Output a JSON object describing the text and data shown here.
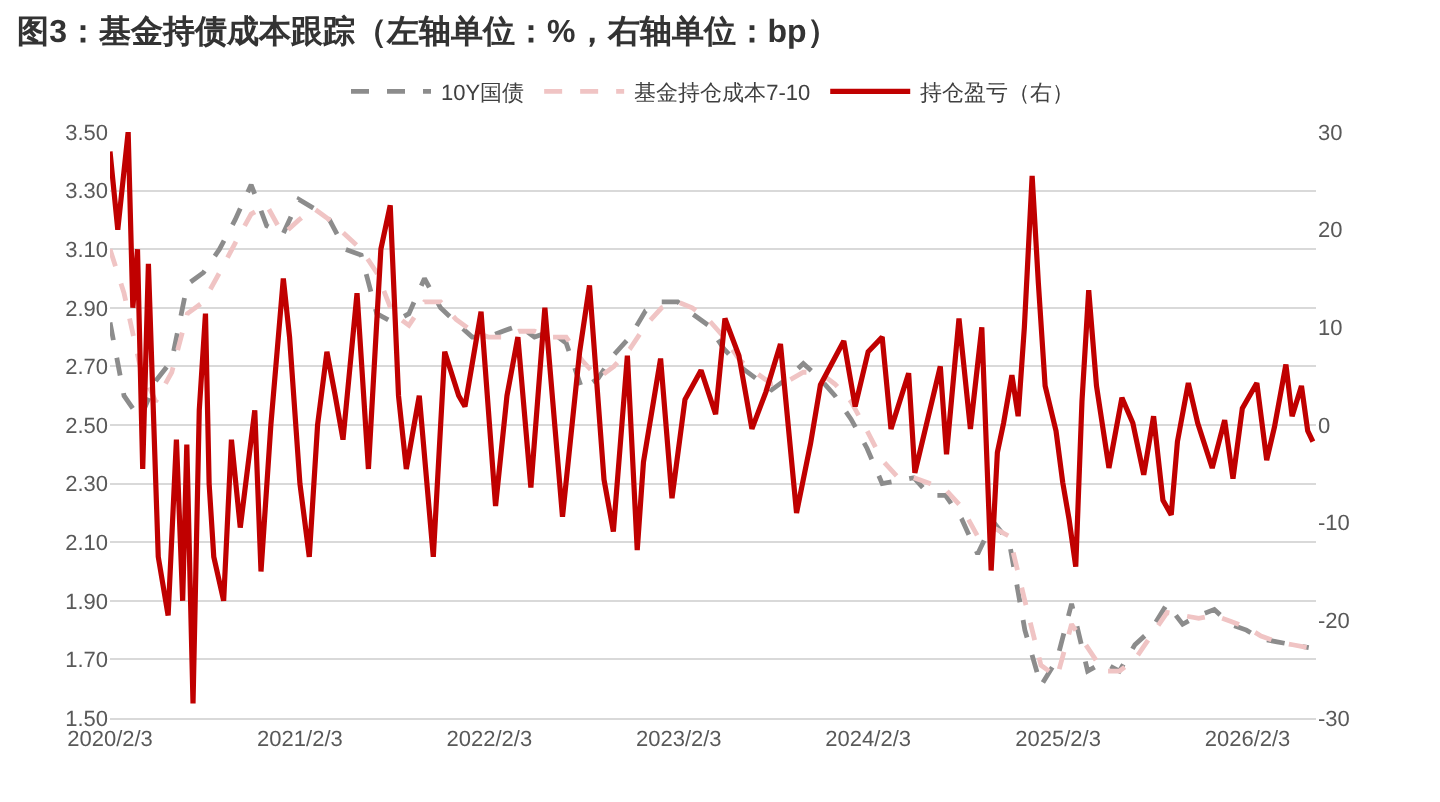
{
  "chart_data": {
    "type": "line",
    "title": "图3：基金持债成本跟踪（左轴单位：%，右轴单位：bp）",
    "x": [
      "2020-02-03",
      "2020-03",
      "2020-04",
      "2020-05",
      "2020-06",
      "2020-07",
      "2020-08",
      "2020-09",
      "2020-10",
      "2020-11",
      "2020-12",
      "2021-01",
      "2021-02",
      "2021-03",
      "2021-04",
      "2021-05",
      "2021-06",
      "2021-07",
      "2021-08",
      "2021-09",
      "2021-10",
      "2021-11",
      "2021-12",
      "2022-01",
      "2022-02",
      "2022-03",
      "2022-04",
      "2022-05",
      "2022-06",
      "2022-07",
      "2022-08",
      "2022-09",
      "2022-10",
      "2022-11",
      "2022-12",
      "2023-01",
      "2023-02",
      "2023-03",
      "2023-04",
      "2023-05",
      "2023-06",
      "2023-07",
      "2023-08",
      "2023-09",
      "2023-10",
      "2023-11",
      "2023-12",
      "2024-01",
      "2024-02",
      "2024-03",
      "2024-04",
      "2024-05",
      "2024-06",
      "2024-07",
      "2024-08",
      "2024-09",
      "2024-10",
      "2024-11",
      "2024-12",
      "2025-01",
      "2025-02",
      "2025-03",
      "2025-04",
      "2025-05",
      "2025-06",
      "2025-07",
      "2025-08",
      "2025-09",
      "2025-10",
      "2025-11",
      "2025-12",
      "2026-01",
      "2026-02",
      "2026-03",
      "2026-04",
      "2026-05",
      "2026-06"
    ],
    "series": [
      {
        "name": "10Y国债",
        "color": "#8c8c8c",
        "line_style": "dashed",
        "values": [
          2.85,
          2.6,
          2.52,
          2.65,
          2.72,
          2.98,
          3.02,
          3.1,
          3.2,
          3.32,
          3.18,
          3.15,
          3.27,
          3.24,
          3.2,
          3.1,
          3.08,
          2.88,
          2.85,
          2.88,
          3.0,
          2.9,
          2.85,
          2.8,
          2.8,
          2.82,
          2.84,
          2.8,
          2.82,
          2.78,
          2.62,
          2.66,
          2.74,
          2.8,
          2.89,
          2.92,
          2.92,
          2.88,
          2.84,
          2.76,
          2.7,
          2.66,
          2.62,
          2.66,
          2.71,
          2.66,
          2.6,
          2.52,
          2.42,
          2.3,
          2.31,
          2.32,
          2.26,
          2.26,
          2.18,
          2.06,
          2.17,
          2.1,
          1.8,
          1.61,
          1.7,
          1.89,
          1.66,
          1.69,
          1.66,
          1.75,
          1.8,
          1.89,
          1.82,
          1.85,
          1.87,
          1.82,
          1.8,
          1.77,
          1.76,
          1.75,
          1.74
        ]
      },
      {
        "name": "基金持仓成本7-10",
        "color": "#f0c4c4",
        "line_style": "dashed",
        "values": [
          3.1,
          2.95,
          2.7,
          2.58,
          2.68,
          2.88,
          2.92,
          3.02,
          3.12,
          3.22,
          3.25,
          3.15,
          3.2,
          3.24,
          3.2,
          3.15,
          3.1,
          3.02,
          2.88,
          2.84,
          2.92,
          2.92,
          2.86,
          2.82,
          2.8,
          2.8,
          2.82,
          2.82,
          2.8,
          2.8,
          2.72,
          2.66,
          2.7,
          2.76,
          2.84,
          2.9,
          2.92,
          2.9,
          2.86,
          2.8,
          2.72,
          2.68,
          2.64,
          2.65,
          2.68,
          2.68,
          2.64,
          2.58,
          2.48,
          2.38,
          2.32,
          2.32,
          2.3,
          2.28,
          2.22,
          2.12,
          2.15,
          2.12,
          1.9,
          1.68,
          1.64,
          1.82,
          1.74,
          1.66,
          1.66,
          1.7,
          1.78,
          1.86,
          1.85,
          1.84,
          1.85,
          1.83,
          1.81,
          1.78,
          1.76,
          1.75,
          1.74
        ]
      },
      {
        "name": "持仓盈亏（右）",
        "color": "#c00000",
        "line_style": "solid",
        "axis": "y2",
        "x": [
          "2020-02-03",
          "2020-02-18",
          "2020-03-09",
          "2020-03-18",
          "2020-03-27",
          "2020-04-06",
          "2020-04-17",
          "2020-05-06",
          "2020-05-25",
          "2020-06-10",
          "2020-06-22",
          "2020-06-30",
          "2020-07-12",
          "2020-07-24",
          "2020-08-05",
          "2020-08-12",
          "2020-08-21",
          "2020-09-09",
          "2020-09-24",
          "2020-10-11",
          "2020-11-08",
          "2020-11-20",
          "2020-12-09",
          "2021-01-02",
          "2021-01-14",
          "2021-02-03",
          "2021-02-21",
          "2021-03-09",
          "2021-03-27",
          "2021-04-12",
          "2021-04-27",
          "2021-05-24",
          "2021-06-15",
          "2021-07-09",
          "2021-07-27",
          "2021-08-12",
          "2021-08-27",
          "2021-09-21",
          "2021-10-18",
          "2021-11-09",
          "2021-12-06",
          "2021-12-18",
          "2022-01-18",
          "2022-02-15",
          "2022-03-09",
          "2022-03-30",
          "2022-04-24",
          "2022-05-21",
          "2022-06-24",
          "2022-07-27",
          "2022-08-15",
          "2022-09-12",
          "2022-09-30",
          "2022-10-27",
          "2022-11-15",
          "2022-11-27",
          "2022-12-30",
          "2023-01-21",
          "2023-02-15",
          "2023-03-18",
          "2023-04-15",
          "2023-05-03",
          "2023-05-30",
          "2023-06-24",
          "2023-07-21",
          "2023-08-18",
          "2023-09-18",
          "2023-10-15",
          "2023-11-03",
          "2023-12-18",
          "2024-01-09",
          "2024-02-03",
          "2024-03-01",
          "2024-03-18",
          "2024-04-21",
          "2024-05-03",
          "2024-06-21",
          "2024-07-03",
          "2024-07-27",
          "2024-08-18",
          "2024-09-09",
          "2024-09-27",
          "2024-10-09",
          "2024-10-21",
          "2024-11-06",
          "2024-11-18",
          "2024-11-30",
          "2024-12-15",
          "2024-12-27",
          "2025-01-09",
          "2025-01-30",
          "2025-02-12",
          "2025-02-24",
          "2025-03-09",
          "2025-03-21",
          "2025-04-03",
          "2025-04-18",
          "2025-05-12",
          "2025-06-06",
          "2025-06-27",
          "2025-07-18",
          "2025-08-06",
          "2025-08-24",
          "2025-09-09",
          "2025-09-21",
          "2025-10-12",
          "2025-10-30",
          "2025-11-27",
          "2025-12-21",
          "2026-01-06",
          "2026-01-24",
          "2026-02-21",
          "2026-03-12",
          "2026-03-27",
          "2026-04-18",
          "2026-04-30",
          "2026-05-18",
          "2026-05-30",
          "2026-06-09"
        ],
        "values": [
          28,
          20,
          30,
          12,
          18,
          -4.5,
          16.5,
          -13.5,
          -19.5,
          -1.5,
          -18,
          -2,
          -28.5,
          1.5,
          11.4,
          -6,
          -13.5,
          -18,
          -1.5,
          -10.5,
          1.5,
          -15,
          0,
          15,
          9,
          -6,
          -13.5,
          0,
          7.5,
          3,
          -1.5,
          13.5,
          -4.5,
          18,
          22.5,
          3,
          -4.5,
          3,
          -13.5,
          7.5,
          3,
          1.9,
          11.6,
          -8.3,
          3,
          9,
          -6.4,
          12,
          -9.4,
          7.5,
          14.3,
          -5.6,
          -10.9,
          7.1,
          -12.8,
          -3.8,
          6.8,
          -7.5,
          2.6,
          5.6,
          1.1,
          10.9,
          7.1,
          -0.4,
          3.4,
          8.3,
          -9,
          -1.9,
          4.1,
          8.6,
          1.9,
          7.5,
          9,
          -0.4,
          5.3,
          -4.9,
          6,
          -3,
          10.9,
          -0.4,
          10,
          -14.9,
          -2.8,
          0.2,
          5.1,
          0.9,
          10,
          25.5,
          14.5,
          4,
          -0.6,
          -5.9,
          -9.6,
          -14.5,
          2.4,
          13.8,
          4,
          -4.4,
          2.8,
          0.2,
          -5.1,
          0.9,
          -7.7,
          -9.2,
          -1.7,
          4.3,
          0.2,
          -4.4,
          0.5,
          -5.5,
          1.7,
          4.3,
          -3.6,
          -0.2,
          6.2,
          0.9,
          4,
          -0.6,
          -1.7
        ]
      }
    ],
    "xlim": [
      "2020-02-03",
      "2026-06-15"
    ],
    "xticks": [
      {
        "value": "2020-02-03",
        "label": "2020/2/3"
      },
      {
        "value": "2021-02-03",
        "label": "2021/2/3"
      },
      {
        "value": "2022-02-03",
        "label": "2022/2/3"
      },
      {
        "value": "2023-02-03",
        "label": "2023/2/3"
      },
      {
        "value": "2024-02-03",
        "label": "2024/2/3"
      },
      {
        "value": "2025-02-03",
        "label": "2025/2/3"
      },
      {
        "value": "2026-02-03",
        "label": "2026/2/3"
      }
    ],
    "ylim": [
      1.5,
      3.5
    ],
    "yticks": [
      {
        "value": 1.5,
        "label": "1.50"
      },
      {
        "value": 1.7,
        "label": "1.70"
      },
      {
        "value": 1.9,
        "label": "1.90"
      },
      {
        "value": 2.1,
        "label": "2.10"
      },
      {
        "value": 2.3,
        "label": "2.30"
      },
      {
        "value": 2.5,
        "label": "2.50"
      },
      {
        "value": 2.7,
        "label": "2.70"
      },
      {
        "value": 2.9,
        "label": "2.90"
      },
      {
        "value": 3.1,
        "label": "3.10"
      },
      {
        "value": 3.3,
        "label": "3.30"
      },
      {
        "value": 3.5,
        "label": "3.50"
      }
    ],
    "y2lim": [
      -30,
      30
    ],
    "y2ticks": [
      -30,
      -20,
      -10,
      0,
      10,
      20,
      30
    ],
    "grid": "y",
    "legend": "top"
  }
}
